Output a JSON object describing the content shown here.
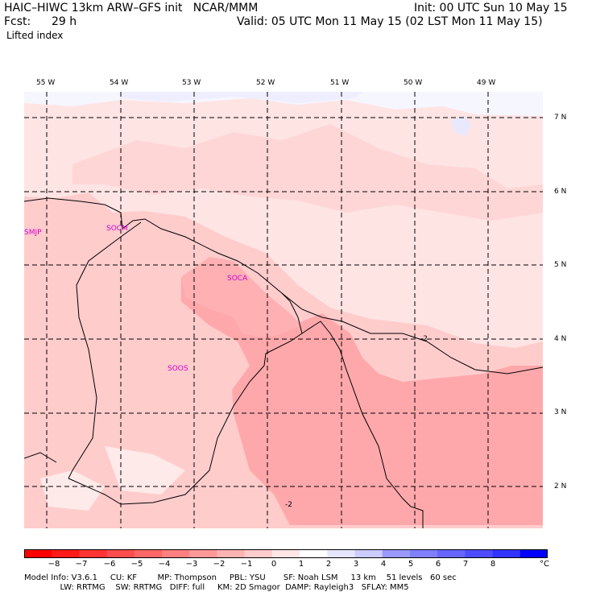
{
  "header": {
    "model_line": "HAIC–HIWC 13km ARW–GFS init   NCAR/MMM",
    "init_line": "Init: 00 UTC Sun 10 May 15",
    "fcst_label": "Fcst:",
    "fcst_value": "29 h",
    "valid_line": "Valid: 05 UTC Mon 11 May 15 (02 LST Mon 11 May 15)",
    "field_name": "Lifted index"
  },
  "map": {
    "lon_labels": [
      "55 W",
      "54 W",
      "53 W",
      "52 W",
      "51 W",
      "50 W",
      "49 W"
    ],
    "lat_labels": [
      "7 N",
      "6 N",
      "5 N",
      "4 N",
      "3 N",
      "2 N"
    ],
    "stations": [
      "SMJP",
      "SOCM",
      "SOCA",
      "SOOS"
    ],
    "contour_labels": [
      "-2",
      "-2"
    ]
  },
  "colorbar": {
    "ticks": [
      "−8",
      "−7",
      "−6",
      "−5",
      "−4",
      "−3",
      "−2",
      "−1",
      "0",
      "1",
      "2",
      "3",
      "4",
      "5",
      "6",
      "7",
      "8"
    ],
    "unit": "°C",
    "colors": [
      "#ff0000",
      "#ff1a1a",
      "#ff3333",
      "#ff4d4d",
      "#ff6666",
      "#ff8080",
      "#ff9999",
      "#ffb3b3",
      "#ffcccc",
      "#ffe6e6",
      "#ffffff",
      "#e6e6ff",
      "#ccccff",
      "#9999ff",
      "#8080ff",
      "#6666ff",
      "#4d4dff",
      "#3333ff",
      "#0000ff"
    ]
  },
  "footer": {
    "line1": "Model Info: V3.6.1     CU: KF        MP: Thompson     PBL: YSU       SF: Noah LSM     13 km    51 levels   60 sec",
    "line2": "              LW: RRTMG    SW: RRTMG   DIFF: full     KM: 2D Smagor  DAMP: Rayleigh3   SFLAY: MM5"
  }
}
